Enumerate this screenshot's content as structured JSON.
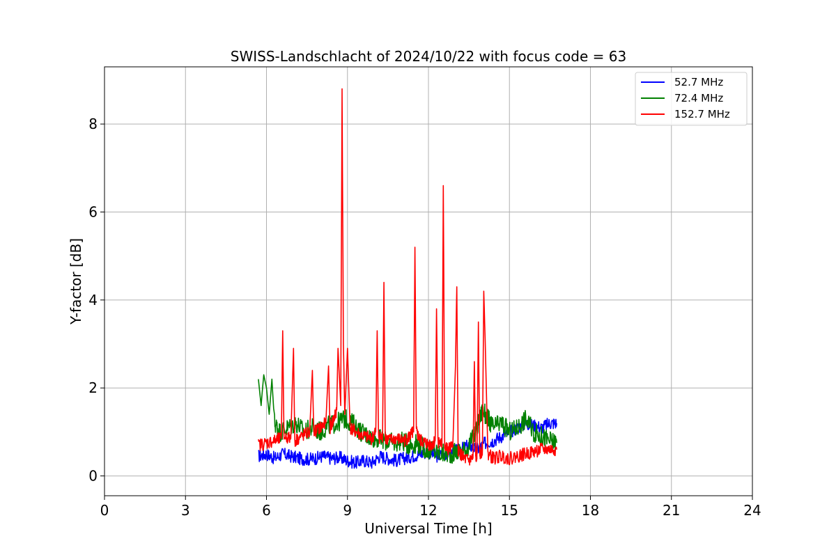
{
  "chart_data": {
    "type": "line",
    "title": "SWISS-Landschlacht of 2024/10/22 with focus code = 63",
    "xlabel": "Universal Time [h]",
    "ylabel": "Y-factor [dB]",
    "xlim": [
      0,
      24
    ],
    "ylim": [
      -0.45,
      9.3
    ],
    "xticks": [
      0,
      3,
      6,
      9,
      12,
      15,
      18,
      21,
      24
    ],
    "xtick_labels": [
      "0",
      "3",
      "6",
      "9",
      "12",
      "15",
      "18",
      "21",
      "24"
    ],
    "yticks": [
      0,
      2,
      4,
      6,
      8
    ],
    "ytick_labels": [
      "0",
      "2",
      "4",
      "6",
      "8"
    ],
    "grid": true,
    "legend_position": "top-right",
    "series": [
      {
        "name": "52.7 MHz",
        "color": "#0000ff",
        "x": [
          5.7,
          6.0,
          6.3,
          6.6,
          6.9,
          7.2,
          7.5,
          7.8,
          8.1,
          8.4,
          8.7,
          9.0,
          9.3,
          9.6,
          9.9,
          10.2,
          10.5,
          10.8,
          11.1,
          11.4,
          11.7,
          12.0,
          12.3,
          12.6,
          12.9,
          13.2,
          13.5,
          13.8,
          14.1,
          14.4,
          14.7,
          15.0,
          15.3,
          15.6,
          15.9,
          16.2,
          16.5,
          16.75
        ],
        "y": [
          0.45,
          0.5,
          0.4,
          0.5,
          0.45,
          0.4,
          0.38,
          0.4,
          0.45,
          0.4,
          0.42,
          0.35,
          0.3,
          0.35,
          0.3,
          0.45,
          0.4,
          0.35,
          0.4,
          0.45,
          0.5,
          0.55,
          0.45,
          0.5,
          0.55,
          0.6,
          0.7,
          0.6,
          0.75,
          0.8,
          0.9,
          1.0,
          1.1,
          1.2,
          1.15,
          1.1,
          1.2,
          1.2
        ]
      },
      {
        "name": "72.4 MHz",
        "color": "#008000",
        "x": [
          5.7,
          5.8,
          5.9,
          6.0,
          6.1,
          6.2,
          6.3,
          6.5,
          6.8,
          7.1,
          7.4,
          7.7,
          8.0,
          8.3,
          8.6,
          8.9,
          9.2,
          9.5,
          9.8,
          10.1,
          10.4,
          10.7,
          11.0,
          11.3,
          11.6,
          11.9,
          12.2,
          12.5,
          12.8,
          13.1,
          13.4,
          13.7,
          14.0,
          14.2,
          14.4,
          14.7,
          15.0,
          15.3,
          15.6,
          15.9,
          16.2,
          16.5,
          16.75
        ],
        "y": [
          2.2,
          1.6,
          2.3,
          2.0,
          1.4,
          2.2,
          1.2,
          1.0,
          1.1,
          1.2,
          1.0,
          1.1,
          1.0,
          1.15,
          1.2,
          1.3,
          1.2,
          1.0,
          0.9,
          0.85,
          0.8,
          0.75,
          0.8,
          0.7,
          0.75,
          0.6,
          0.55,
          0.5,
          0.5,
          0.55,
          0.6,
          0.9,
          1.5,
          1.3,
          1.1,
          1.2,
          1.0,
          1.1,
          1.3,
          1.0,
          0.9,
          0.8,
          0.75
        ]
      },
      {
        "name": "152.7 MHz",
        "color": "#ff0000",
        "x": [
          5.7,
          6.0,
          6.3,
          6.55,
          6.6,
          6.65,
          6.9,
          7.0,
          7.05,
          7.3,
          7.6,
          7.7,
          7.75,
          8.0,
          8.2,
          8.3,
          8.35,
          8.5,
          8.6,
          8.65,
          8.75,
          8.8,
          8.85,
          8.9,
          9.0,
          9.1,
          9.3,
          9.6,
          9.9,
          10.05,
          10.1,
          10.15,
          10.3,
          10.35,
          10.4,
          10.5,
          10.8,
          11.1,
          11.3,
          11.45,
          11.5,
          11.55,
          11.7,
          11.9,
          12.1,
          12.25,
          12.3,
          12.35,
          12.5,
          12.55,
          12.6,
          12.7,
          12.9,
          13.0,
          13.05,
          13.1,
          13.3,
          13.5,
          13.65,
          13.7,
          13.75,
          13.8,
          13.85,
          13.9,
          14.0,
          14.05,
          14.1,
          14.2,
          14.4,
          14.7,
          15.0,
          15.3,
          15.6,
          15.9,
          16.2,
          16.5,
          16.75
        ],
        "y": [
          0.7,
          0.75,
          0.8,
          0.85,
          3.3,
          0.9,
          0.85,
          2.9,
          0.8,
          0.9,
          1.0,
          2.4,
          1.0,
          1.1,
          1.2,
          2.5,
          1.1,
          1.3,
          1.5,
          2.9,
          1.6,
          8.8,
          3.0,
          1.4,
          2.9,
          1.1,
          1.0,
          0.9,
          0.85,
          1.0,
          3.3,
          0.9,
          0.85,
          4.4,
          0.9,
          0.8,
          0.85,
          0.8,
          0.9,
          1.0,
          5.2,
          1.0,
          0.8,
          0.75,
          0.7,
          0.8,
          3.8,
          0.8,
          0.7,
          6.6,
          0.7,
          0.6,
          0.65,
          2.5,
          4.3,
          0.6,
          0.4,
          0.35,
          0.4,
          2.6,
          0.4,
          0.5,
          3.5,
          0.5,
          0.6,
          4.2,
          3.1,
          0.5,
          0.4,
          0.45,
          0.4,
          0.45,
          0.5,
          0.55,
          0.6,
          0.6,
          0.6
        ]
      }
    ]
  }
}
